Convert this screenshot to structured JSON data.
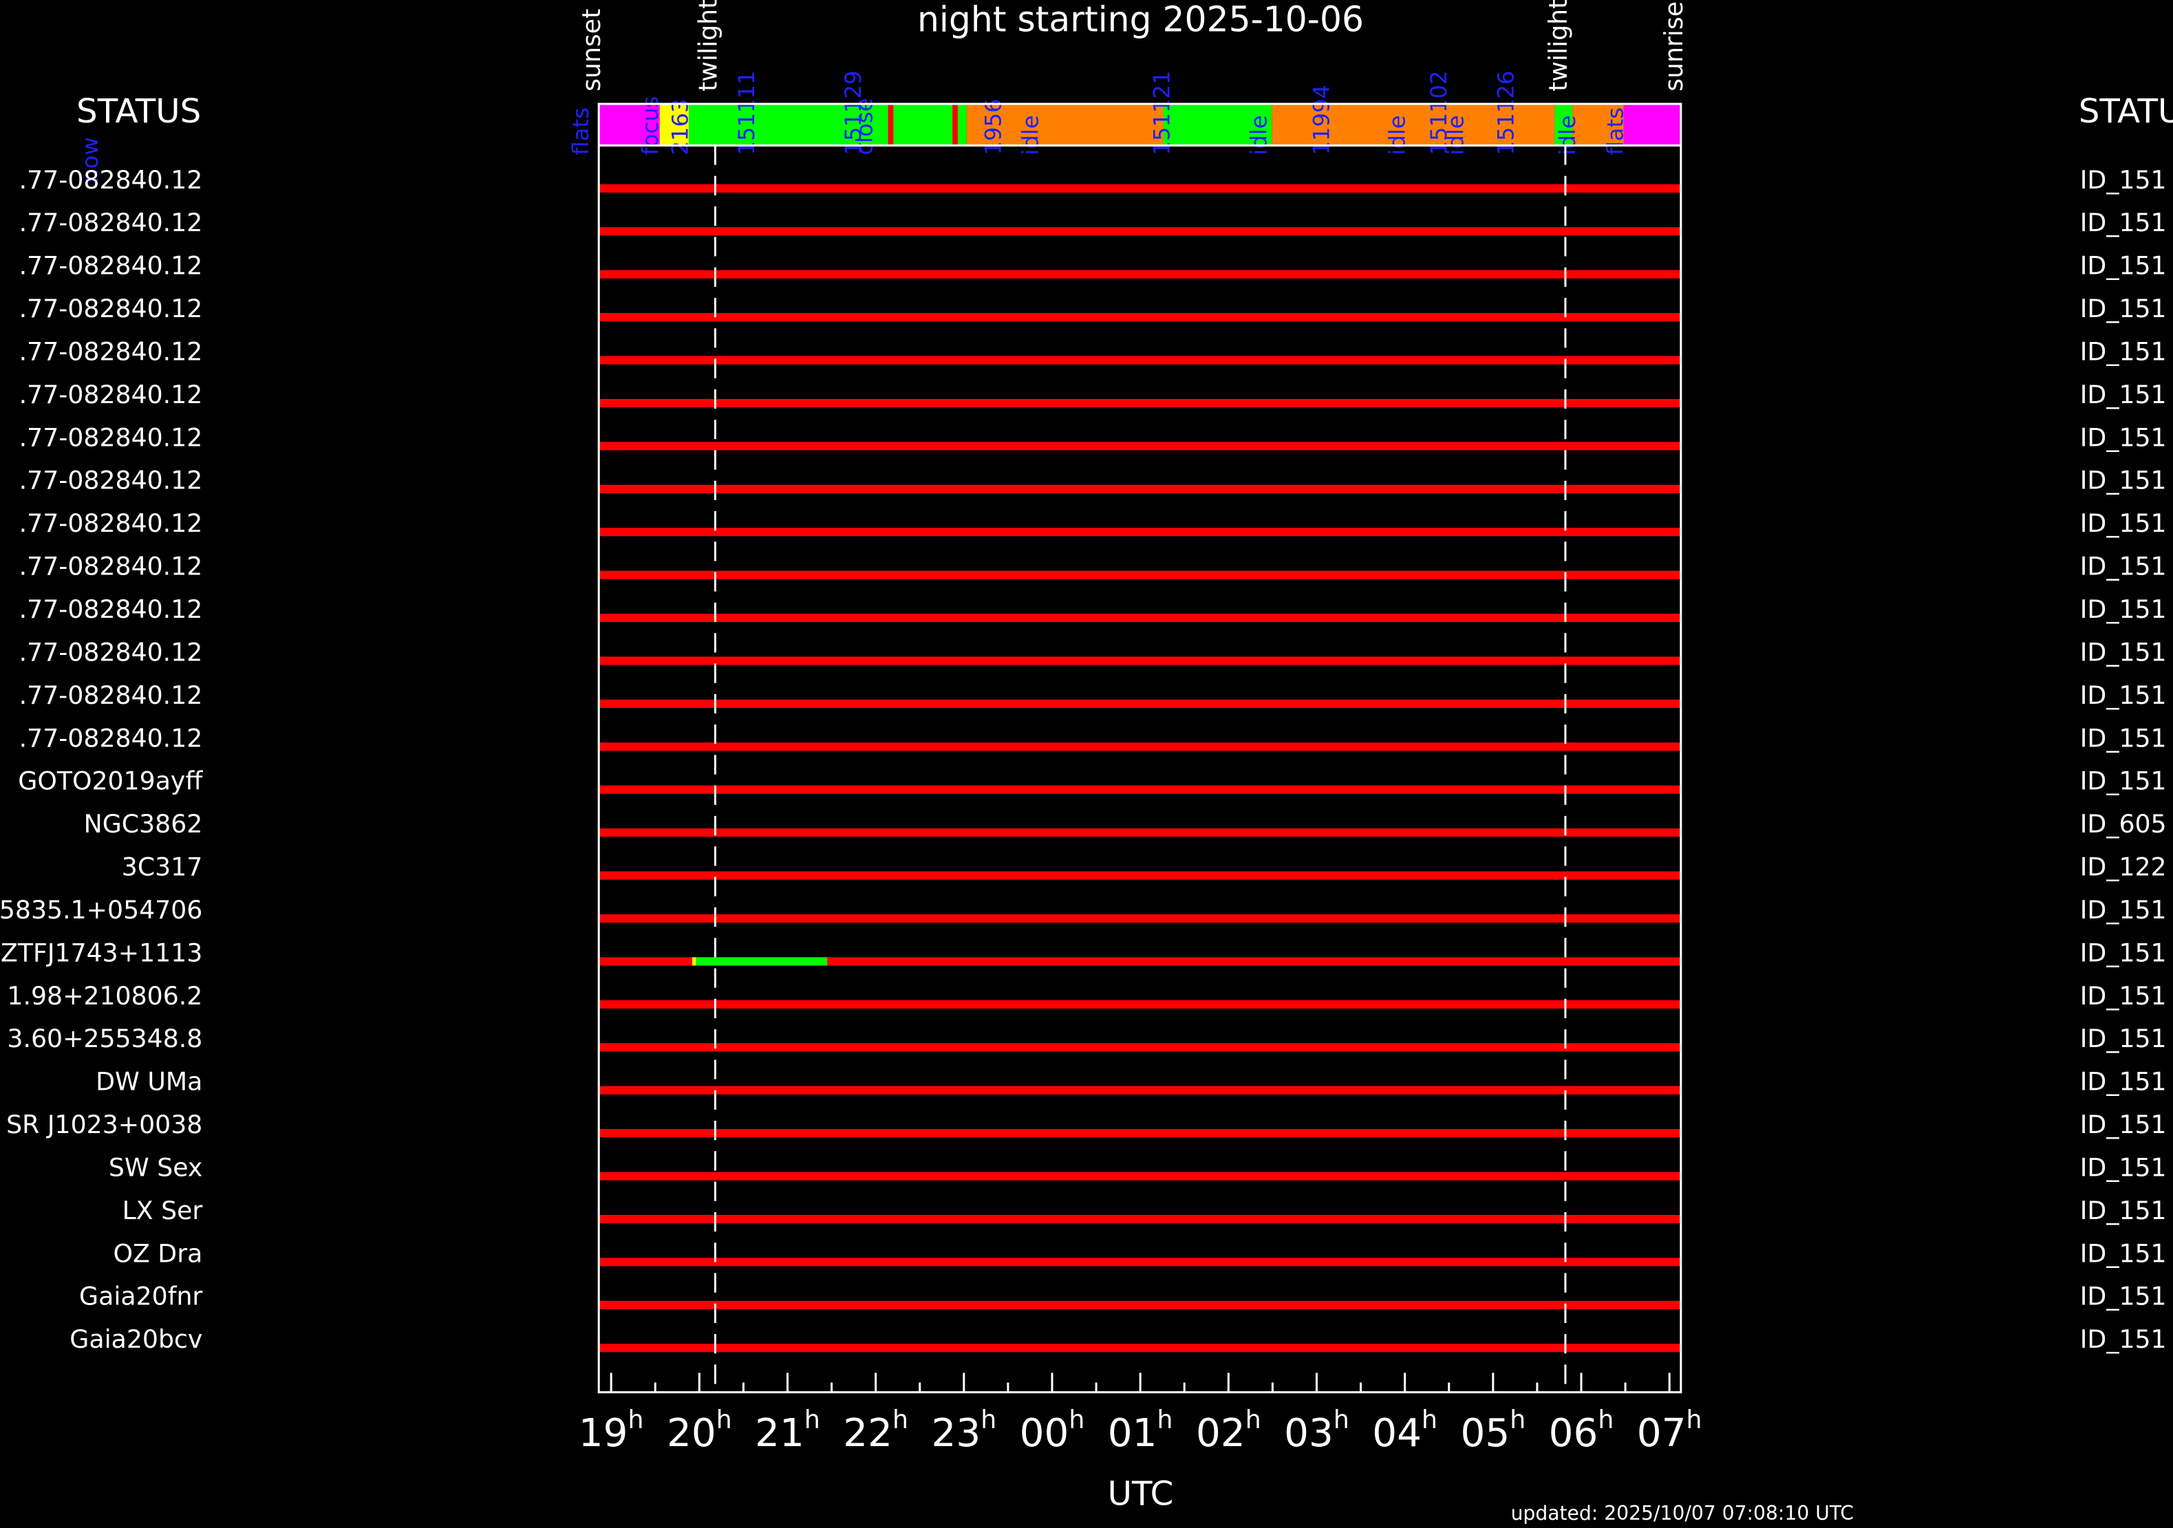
{
  "chart_data": {
    "type": "timeline",
    "title": "night starting 2025-10-06",
    "xlabel": "UTC",
    "footer": "updated: 2025/10/07 07:08:10 UTC",
    "left_header": "STATUS",
    "right_header": "STATU",
    "now_label": "now",
    "xlim": [
      18.86,
      31.13
    ],
    "xticks": [
      {
        "value": 19,
        "label": "19h"
      },
      {
        "value": 20,
        "label": "20h"
      },
      {
        "value": 21,
        "label": "21h"
      },
      {
        "value": 22,
        "label": "22h"
      },
      {
        "value": 23,
        "label": "23h"
      },
      {
        "value": 24,
        "label": "00h"
      },
      {
        "value": 25,
        "label": "01h"
      },
      {
        "value": 26,
        "label": "02h"
      },
      {
        "value": 27,
        "label": "03h"
      },
      {
        "value": 28,
        "label": "04h"
      },
      {
        "value": 29,
        "label": "05h"
      },
      {
        "value": 30,
        "label": "06h"
      },
      {
        "value": 31,
        "label": "07h"
      }
    ],
    "minor_xticks": [
      19.5,
      20.5,
      21.5,
      22.5,
      23.5,
      24.5,
      25.5,
      26.5,
      27.5,
      28.5,
      29.5,
      30.5
    ],
    "markers": [
      {
        "label": "sunset",
        "time": 18.86
      },
      {
        "label": "twilight",
        "time": 20.18
      },
      {
        "label": "twilight",
        "time": 29.82
      },
      {
        "label": "sunrise",
        "time": 31.13
      }
    ],
    "status": [
      {
        "color": "#ff00ff",
        "start": 18.86,
        "end": 19.55
      },
      {
        "color": "#ffff00",
        "start": 19.55,
        "end": 19.88
      },
      {
        "color": "#00ff00",
        "start": 19.88,
        "end": 23.03
      },
      {
        "color": "#ff0000",
        "start": 22.14,
        "end": 22.2
      },
      {
        "color": "#ff0000",
        "start": 22.87,
        "end": 22.93
      },
      {
        "color": "#ff8000",
        "start": 23.03,
        "end": 25.26
      },
      {
        "color": "#00ff00",
        "start": 25.26,
        "end": 26.49
      },
      {
        "color": "#ff8000",
        "start": 26.49,
        "end": 29.7
      },
      {
        "color": "#00ff00",
        "start": 29.7,
        "end": 29.9
      },
      {
        "color": "#ff8000",
        "start": 29.9,
        "end": 30.48
      },
      {
        "color": "#ff00ff",
        "start": 30.48,
        "end": 31.13
      }
    ],
    "status_labels": [
      {
        "label": "flats",
        "time": 18.67
      },
      {
        "label": "focus",
        "time": 19.46
      },
      {
        "label": "2163",
        "time": 19.8
      },
      {
        "label": "151111",
        "time": 20.55
      },
      {
        "label": "151129",
        "time": 21.76
      },
      {
        "label": "close",
        "time": 21.89
      },
      {
        "label": "1956",
        "time": 23.35
      },
      {
        "label": "idle",
        "time": 23.77
      },
      {
        "label": "151121",
        "time": 25.26
      },
      {
        "label": "idle",
        "time": 26.36
      },
      {
        "label": "11994",
        "time": 27.07
      },
      {
        "label": "idle",
        "time": 27.93
      },
      {
        "label": "151102",
        "time": 28.4
      },
      {
        "label": "idle",
        "time": 28.59
      },
      {
        "label": "151126",
        "time": 29.16
      },
      {
        "label": "idle",
        "time": 29.86
      },
      {
        "label": "flats",
        "time": 30.4
      }
    ],
    "row_color": "#ff0000",
    "rows": [
      {
        "name": ".77-082840.12",
        "id": "ID_151",
        "segments": []
      },
      {
        "name": ".77-082840.12",
        "id": "ID_151",
        "segments": []
      },
      {
        "name": ".77-082840.12",
        "id": "ID_151",
        "segments": []
      },
      {
        "name": ".77-082840.12",
        "id": "ID_151",
        "segments": []
      },
      {
        "name": ".77-082840.12",
        "id": "ID_151",
        "segments": []
      },
      {
        "name": ".77-082840.12",
        "id": "ID_151",
        "segments": []
      },
      {
        "name": ".77-082840.12",
        "id": "ID_151",
        "segments": []
      },
      {
        "name": ".77-082840.12",
        "id": "ID_151",
        "segments": []
      },
      {
        "name": ".77-082840.12",
        "id": "ID_151",
        "segments": []
      },
      {
        "name": ".77-082840.12",
        "id": "ID_151",
        "segments": []
      },
      {
        "name": ".77-082840.12",
        "id": "ID_151",
        "segments": []
      },
      {
        "name": ".77-082840.12",
        "id": "ID_151",
        "segments": []
      },
      {
        "name": ".77-082840.12",
        "id": "ID_151",
        "segments": []
      },
      {
        "name": ".77-082840.12",
        "id": "ID_151",
        "segments": []
      },
      {
        "name": "GOTO2019ayff",
        "id": "ID_151",
        "segments": []
      },
      {
        "name": "NGC3862",
        "id": "ID_605",
        "segments": []
      },
      {
        "name": "3C317",
        "id": "ID_122",
        "segments": []
      },
      {
        "name": "5835.1+054706",
        "id": "ID_151",
        "segments": []
      },
      {
        "name": "ZTFJ1743+1113",
        "id": "ID_151",
        "segments": [
          {
            "color": "#00ff00",
            "start": 19.94,
            "end": 21.45
          },
          {
            "color": "#ffff00",
            "start": 19.92,
            "end": 19.96
          }
        ]
      },
      {
        "name": "1.98+210806.2",
        "id": "ID_151",
        "segments": []
      },
      {
        "name": "3.60+255348.8",
        "id": "ID_151",
        "segments": []
      },
      {
        "name": "DW UMa",
        "id": "ID_151",
        "segments": []
      },
      {
        "name": "SR J1023+0038",
        "id": "ID_151",
        "segments": []
      },
      {
        "name": "SW Sex",
        "id": "ID_151",
        "segments": []
      },
      {
        "name": "LX Ser",
        "id": "ID_151",
        "segments": []
      },
      {
        "name": "OZ Dra",
        "id": "ID_151",
        "segments": []
      },
      {
        "name": "Gaia20fnr",
        "id": "ID_151",
        "segments": []
      },
      {
        "name": "Gaia20bcv",
        "id": "ID_151",
        "segments": []
      }
    ]
  }
}
